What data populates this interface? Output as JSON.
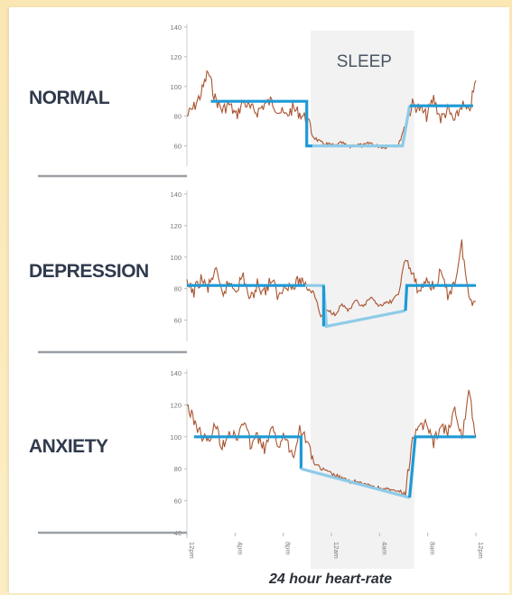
{
  "chart_data": [
    {
      "type": "line",
      "panel": "NORMAL",
      "title": "NORMAL",
      "annotation": "SLEEP",
      "yticks": [
        60,
        80,
        100,
        120,
        140
      ],
      "ylim": [
        50,
        140
      ],
      "sleep_band_hours": [
        8.9,
        16.0
      ],
      "series": [
        {
          "kind": "raw-heart-rate",
          "x_hours": [
            0,
            0.5,
            1,
            1.5,
            2,
            2.5,
            3,
            3.5,
            4,
            4.5,
            5,
            5.5,
            6,
            6.5,
            7,
            7.5,
            8,
            8.5,
            9,
            9.5,
            10,
            10.5,
            11,
            11.5,
            12,
            12.5,
            13,
            13.5,
            14,
            14.5,
            15,
            15.5,
            16,
            16.5,
            17,
            17.5,
            18,
            18.5,
            19,
            19.5,
            20,
            20.5
          ],
          "values": [
            80,
            86,
            95,
            110,
            92,
            84,
            88,
            80,
            90,
            85,
            83,
            88,
            90,
            84,
            80,
            85,
            82,
            78,
            66,
            62,
            61,
            60,
            62,
            59,
            61,
            60,
            62,
            60,
            59,
            61,
            60,
            75,
            88,
            85,
            80,
            92,
            78,
            84,
            76,
            88,
            82,
            104
          ]
        },
        {
          "kind": "trend",
          "x_hours": [
            1.7,
            8.5,
            8.5,
            8.9
          ],
          "values": [
            90,
            90,
            60,
            60
          ]
        },
        {
          "kind": "trend-sleep",
          "x_hours": [
            8.9,
            15.3,
            15.8
          ],
          "values": [
            60,
            60,
            87
          ]
        },
        {
          "kind": "trend",
          "x_hours": [
            15.8,
            20.3
          ],
          "values": [
            87,
            87
          ]
        }
      ]
    },
    {
      "type": "line",
      "panel": "DEPRESSION",
      "title": "DEPRESSION",
      "yticks": [
        60,
        80,
        100,
        120,
        140
      ],
      "ylim": [
        50,
        140
      ],
      "sleep_band_hours": [
        8.9,
        16.0
      ],
      "series": [
        {
          "kind": "raw-heart-rate",
          "x_hours": [
            0,
            0.5,
            1,
            1.5,
            2,
            2.5,
            3,
            3.5,
            4,
            4.5,
            5,
            5.5,
            6,
            6.5,
            7,
            7.5,
            8,
            8.5,
            9,
            9.5,
            10,
            10.5,
            11,
            11.5,
            12,
            12.5,
            13,
            13.5,
            14,
            14.5,
            15,
            15.5,
            16,
            16.5,
            17,
            17.5,
            18,
            18.5,
            19,
            19.5,
            20,
            20.5
          ],
          "values": [
            82,
            78,
            86,
            80,
            92,
            76,
            84,
            80,
            88,
            72,
            83,
            78,
            86,
            74,
            84,
            80,
            86,
            82,
            78,
            62,
            66,
            64,
            70,
            66,
            72,
            68,
            74,
            70,
            70,
            72,
            76,
            100,
            88,
            78,
            86,
            80,
            90,
            76,
            84,
            108,
            74,
            72
          ]
        },
        {
          "kind": "trend",
          "x_hours": [
            0,
            8.4
          ],
          "values": [
            82,
            82
          ]
        },
        {
          "kind": "trend-sleep",
          "x_hours": [
            8.4,
            9.7,
            9.9,
            15.5
          ],
          "values": [
            82,
            82,
            56,
            66
          ]
        },
        {
          "kind": "trend",
          "x_hours": [
            9.7,
            9.7
          ],
          "values": [
            82,
            56
          ]
        },
        {
          "kind": "trend",
          "x_hours": [
            15.5,
            15.6,
            20.5
          ],
          "values": [
            66,
            82,
            82
          ]
        }
      ]
    },
    {
      "type": "line",
      "panel": "ANXIETY",
      "title": "ANXIETY",
      "xlabel": "24 hour heart-rate",
      "yticks": [
        40,
        60,
        80,
        100,
        120,
        140
      ],
      "ylim": [
        40,
        140
      ],
      "sleep_band_hours": [
        8.9,
        16.0
      ],
      "xticks": [
        "12pm",
        "4pm",
        "8pm",
        "12am",
        "4am",
        "8am",
        "12pm"
      ],
      "series": [
        {
          "kind": "raw-heart-rate",
          "x_hours": [
            0,
            0.5,
            1,
            1.5,
            2,
            2.5,
            3,
            3.5,
            4,
            4.5,
            5,
            5.5,
            6,
            6.5,
            7,
            7.5,
            8,
            8.5,
            9,
            9.5,
            10,
            10.5,
            11,
            11.5,
            12,
            12.5,
            13,
            13.5,
            14,
            14.5,
            15,
            15.5,
            16,
            16.5,
            17,
            17.5,
            18,
            18.5,
            19,
            19.5,
            20,
            20.5
          ],
          "values": [
            120,
            110,
            102,
            96,
            108,
            94,
            104,
            98,
            110,
            96,
            100,
            92,
            104,
            96,
            100,
            88,
            106,
            98,
            84,
            80,
            78,
            76,
            74,
            72,
            72,
            70,
            70,
            68,
            68,
            66,
            66,
            64,
            100,
            104,
            110,
            96,
            108,
            102,
            116,
            98,
            130,
            100
          ]
        },
        {
          "kind": "trend",
          "x_hours": [
            0.5,
            8.1,
            8.1
          ],
          "values": [
            100,
            100,
            80
          ]
        },
        {
          "kind": "trend-sleep",
          "x_hours": [
            8.1,
            15.8
          ],
          "values": [
            80,
            62
          ]
        },
        {
          "kind": "trend",
          "x_hours": [
            15.8,
            16.2,
            20.5
          ],
          "values": [
            62,
            100,
            100
          ]
        }
      ]
    }
  ]
}
